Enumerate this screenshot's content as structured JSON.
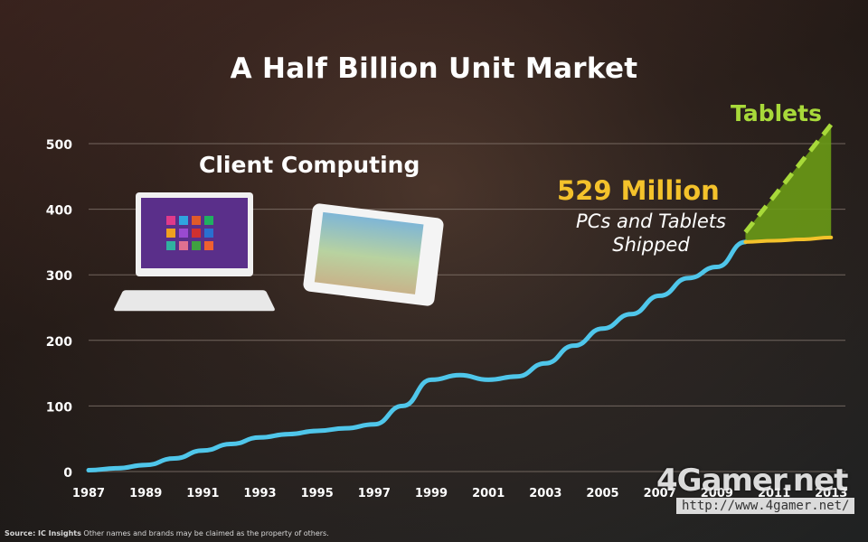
{
  "slide": {
    "title": "A Half Billion Unit Market",
    "segment_label": "Client Computing",
    "tablets_label": "Tablets",
    "total_value": "529 Million",
    "total_desc_line1": "PCs and Tablets",
    "total_desc_line2": "Shipped",
    "source_bold": "Source: IC Insights",
    "source_rest": "Other names and brands may be claimed as the property of others.",
    "watermark": "4Gamer.net",
    "watermark_url": "http://www.4gamer.net/"
  },
  "colors": {
    "pc_line": "#4fc6ea",
    "tablet_line": "#a8d93a",
    "tablet_fill": "#6a9a16",
    "pc_after_split": "#f4c22b",
    "axis_text": "#ffffff",
    "grid": "#8a7d74"
  },
  "chart_data": {
    "type": "line",
    "title": "A Half Billion Unit Market",
    "xlabel": "",
    "ylabel": "",
    "xlim": [
      1987,
      2013.5
    ],
    "ylim": [
      0,
      500
    ],
    "yticks": [
      0,
      100,
      200,
      300,
      400,
      500
    ],
    "xticks": [
      1987,
      1989,
      1991,
      1993,
      1995,
      1997,
      1999,
      2001,
      2003,
      2005,
      2007,
      2009,
      2011,
      2013
    ],
    "grid": "horizontal",
    "series": [
      {
        "name": "",
        "x": [
          1987,
          1988,
          1989,
          1990,
          1991,
          1992,
          1993,
          1994,
          1995,
          1996,
          1997,
          1998,
          1999,
          2000,
          2001,
          2002,
          2003,
          2004,
          2005,
          2006,
          2007,
          2008,
          2009,
          2010
        ],
        "y": [
          2,
          5,
          10,
          20,
          32,
          42,
          52,
          57,
          62,
          66,
          72,
          100,
          140,
          147,
          140,
          145,
          165,
          192,
          218,
          240,
          268,
          295,
          312,
          350
        ]
      },
      {
        "name": "",
        "x": [
          2010,
          2011,
          2012,
          2013
        ],
        "y": [
          350,
          352,
          354,
          357
        ]
      },
      {
        "name": "Tablets",
        "x": [
          2010,
          2011,
          2012,
          2013
        ],
        "y": [
          365,
          420,
          475,
          529
        ]
      }
    ],
    "annotations": [
      "529 Million",
      "PCs and Tablets Shipped",
      "Client Computing",
      "Tablets"
    ]
  }
}
